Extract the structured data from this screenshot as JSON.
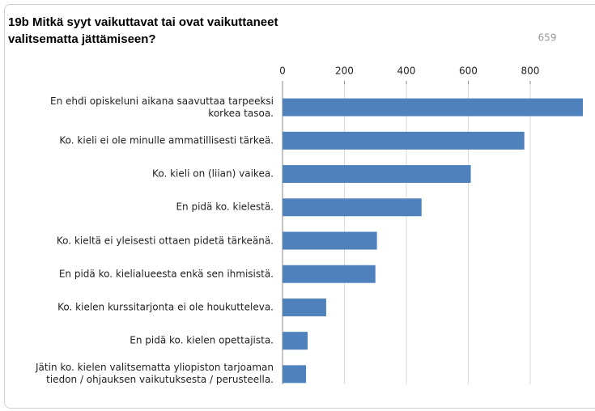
{
  "chart_data": {
    "type": "bar",
    "orientation": "horizontal",
    "title": "19b Mitkä syyt vaikuttavat tai ovat vaikuttaneet\nvalitsematta jättämiseen?",
    "annotation": "659",
    "categories": [
      "En ehdi opiskeluni aikana saavuttaa tarpeeksi\nkorkea tasoa.",
      "Ko. kieli ei ole minulle ammatillisesti tärkeä.",
      "Ko. kieli on (liian) vaikea.",
      "En pidä ko. kielestä.",
      "Ko. kieltä ei yleisesti ottaen pidetä tärkeänä.",
      "En pidä ko. kielialueesta enkä sen ihmisistä.",
      "Ko. kielen kurssitarjonta ei ole houkutteleva.",
      "En pidä ko. kielen opettajista.",
      "Jätin ko. kielen valitsematta yliopiston tarjoaman\ntiedon / ohjauksen vaikutuksesta / perusteella."
    ],
    "values": [
      970,
      781,
      608,
      449,
      305,
      300,
      141,
      81,
      76
    ],
    "color": "#4f81bd",
    "xlim": [
      0,
      970
    ],
    "xticks": [
      0,
      200,
      400,
      600,
      800
    ],
    "grid": true
  }
}
